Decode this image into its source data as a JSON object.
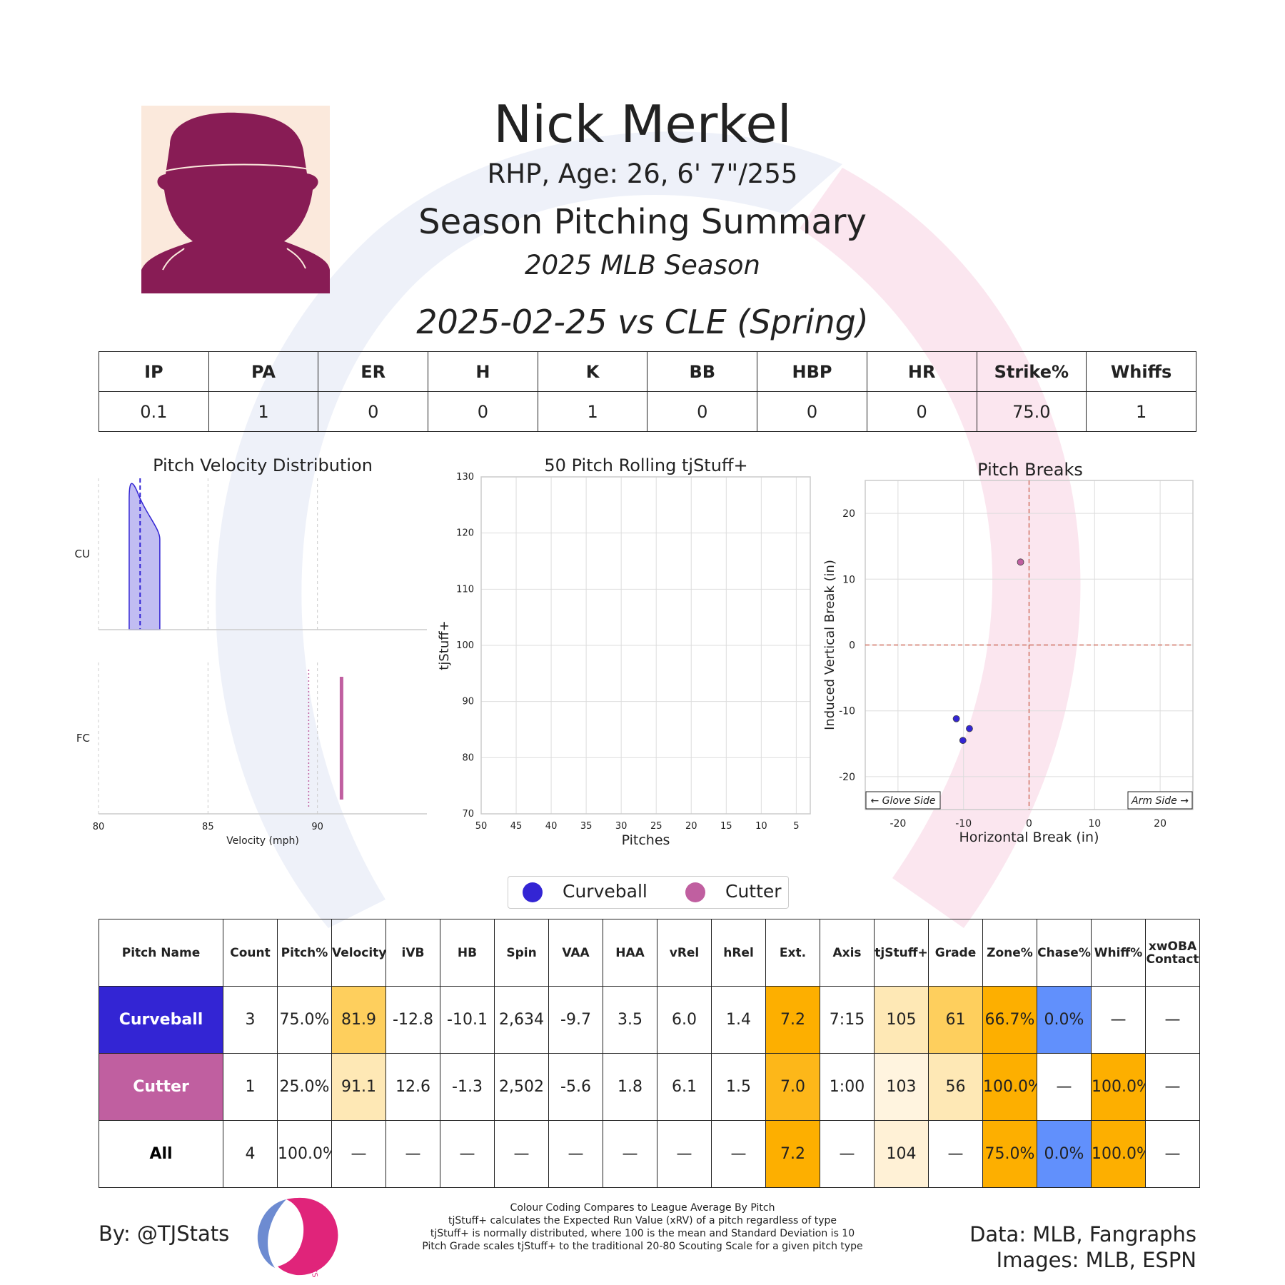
{
  "header": {
    "player_name": "Nick Merkel",
    "player_info": "RHP, Age: 26, 6' 7\"/255",
    "summary_title": "Season Pitching Summary",
    "season_label": "2025 MLB Season",
    "game_label": "2025-02-25 vs CLE (Spring)"
  },
  "colors": {
    "curveball": "#3325d4",
    "cutter": "#c05fa0",
    "headshot_bg": "#fbe9dc",
    "headshot_fg": "#881c55",
    "good_strong": "#fdaf00",
    "good_mid": "#fecf5d",
    "good_light": "#fee8b5",
    "good_pale": "#fff4df",
    "bad": "#6190fc"
  },
  "game_stats": {
    "headers": [
      "IP",
      "PA",
      "ER",
      "H",
      "K",
      "BB",
      "HBP",
      "HR",
      "Strike%",
      "Whiffs"
    ],
    "values": [
      "0.1",
      "1",
      "0",
      "0",
      "1",
      "0",
      "0",
      "0",
      "75.0",
      "1"
    ]
  },
  "chart_data": [
    {
      "type": "area",
      "title": "Pitch Velocity Distribution",
      "xlabel": "Velocity (mph)",
      "ylabel": "",
      "xlim": [
        80,
        95
      ],
      "xticks": [
        80,
        85,
        90
      ],
      "series": [
        {
          "name": "CU",
          "pitch": "Curveball",
          "values": [
            81.9,
            81.5,
            82.2
          ],
          "mean": 81.9
        },
        {
          "name": "FC",
          "pitch": "Cutter",
          "values": [
            91.1
          ],
          "mean": 91.1,
          "league_mean": 89.6
        }
      ]
    },
    {
      "type": "line",
      "title": "50 Pitch Rolling tjStuff+",
      "xlabel": "Pitches",
      "ylabel": "tjStuff+",
      "xlim": [
        50,
        3
      ],
      "ylim": [
        70,
        130
      ],
      "xticks": [
        50,
        45,
        40,
        35,
        30,
        25,
        20,
        15,
        10,
        5
      ],
      "yticks": [
        70,
        80,
        90,
        100,
        110,
        120,
        130
      ],
      "series": []
    },
    {
      "type": "scatter",
      "title": "Pitch Breaks",
      "xlabel": "Horizontal Break (in)",
      "ylabel": "Induced Vertical Break (in)",
      "xlim": [
        -25,
        25
      ],
      "ylim": [
        -25,
        25
      ],
      "xticks": [
        -20,
        -10,
        0,
        10,
        20
      ],
      "yticks": [
        -20,
        -10,
        0,
        10,
        20
      ],
      "annotations": {
        "left": "← Glove Side",
        "right": "Arm Side →"
      },
      "series": [
        {
          "name": "Curveball",
          "points": [
            [
              -11.1,
              -11.2
            ],
            [
              -10.1,
              -14.5
            ],
            [
              -9.1,
              -12.7
            ]
          ]
        },
        {
          "name": "Cutter",
          "points": [
            [
              -1.3,
              12.6
            ]
          ]
        }
      ]
    }
  ],
  "legend": [
    "Curveball",
    "Cutter"
  ],
  "pitch_table": {
    "headers": [
      "Pitch Name",
      "Count",
      "Pitch%",
      "Velocity",
      "iVB",
      "HB",
      "Spin",
      "VAA",
      "HAA",
      "vRel",
      "hRel",
      "Ext.",
      "Axis",
      "tjStuff+",
      "Grade",
      "Zone%",
      "Chase%",
      "Whiff%",
      "xwOBA Contact"
    ],
    "rows": [
      {
        "name": "Curveball",
        "color": "#3325d4",
        "cells": [
          "3",
          "75.0%",
          "81.9",
          "-12.8",
          "-10.1",
          "2,634",
          "-9.7",
          "3.5",
          "6.0",
          "1.4",
          "7.2",
          "7:15",
          "105",
          "61",
          "66.7%",
          "0.0%",
          "—",
          "—"
        ],
        "bg": [
          "",
          "",
          "#fecf5d",
          "",
          "",
          "",
          "",
          "",
          "",
          "",
          "#fdaf00",
          "",
          "#fee8b5",
          "#fecf5d",
          "#fdaf00",
          "#6190fc",
          "",
          ""
        ]
      },
      {
        "name": "Cutter",
        "color": "#c05fa0",
        "cells": [
          "1",
          "25.0%",
          "91.1",
          "12.6",
          "-1.3",
          "2,502",
          "-5.6",
          "1.8",
          "6.1",
          "1.5",
          "7.0",
          "1:00",
          "103",
          "56",
          "100.0%",
          "—",
          "100.0%",
          "—"
        ],
        "bg": [
          "",
          "",
          "#fee8b5",
          "",
          "",
          "",
          "",
          "",
          "",
          "",
          "#fdb719",
          "",
          "#fff4df",
          "#fee8b5",
          "#fdaf00",
          "",
          "#fdaf00",
          ""
        ]
      },
      {
        "name": "All",
        "color": "#ffffff",
        "cells": [
          "4",
          "100.0%",
          "—",
          "—",
          "—",
          "—",
          "—",
          "—",
          "—",
          "—",
          "7.2",
          "—",
          "104",
          "—",
          "75.0%",
          "0.0%",
          "100.0%",
          "—"
        ],
        "bg": [
          "",
          "",
          "",
          "",
          "",
          "",
          "",
          "",
          "",
          "",
          "#fdaf00",
          "",
          "#fff1d6",
          "",
          "#fdaf00",
          "#6190fc",
          "#fdaf00",
          ""
        ]
      }
    ]
  },
  "footer": {
    "by": "By: @TJStats",
    "data_line1": "Data: MLB, Fangraphs",
    "data_line2": "Images: MLB, ESPN",
    "notes": [
      "Colour Coding Compares to League Average By Pitch",
      "tjStuff+ calculates the Expected Run Value (xRV) of a pitch regardless of type",
      "tjStuff+ is normally distributed, where 100 is the mean and Standard Deviation is 10",
      "Pitch Grade scales tjStuff+ to the traditional 20-80 Scouting Scale for a given pitch type"
    ],
    "logo_text": "STATS"
  }
}
